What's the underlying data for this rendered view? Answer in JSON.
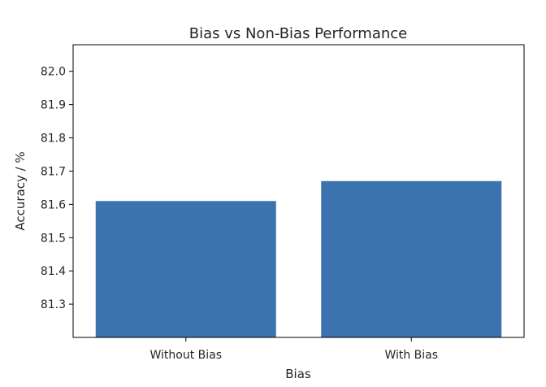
{
  "chart_data": {
    "type": "bar",
    "title": "Bias vs Non-Bias Performance",
    "xlabel": "Bias",
    "ylabel": "Accuracy / %",
    "categories": [
      "Without Bias",
      "With Bias"
    ],
    "values": [
      81.61,
      81.67
    ],
    "ylim": [
      81.2,
      82.08
    ],
    "yticks": [
      "81.3",
      "81.4",
      "81.5",
      "81.6",
      "81.7",
      "81.8",
      "81.9",
      "82.0"
    ],
    "bar_color": "#3a73ad",
    "grid": false,
    "legend": "none"
  }
}
